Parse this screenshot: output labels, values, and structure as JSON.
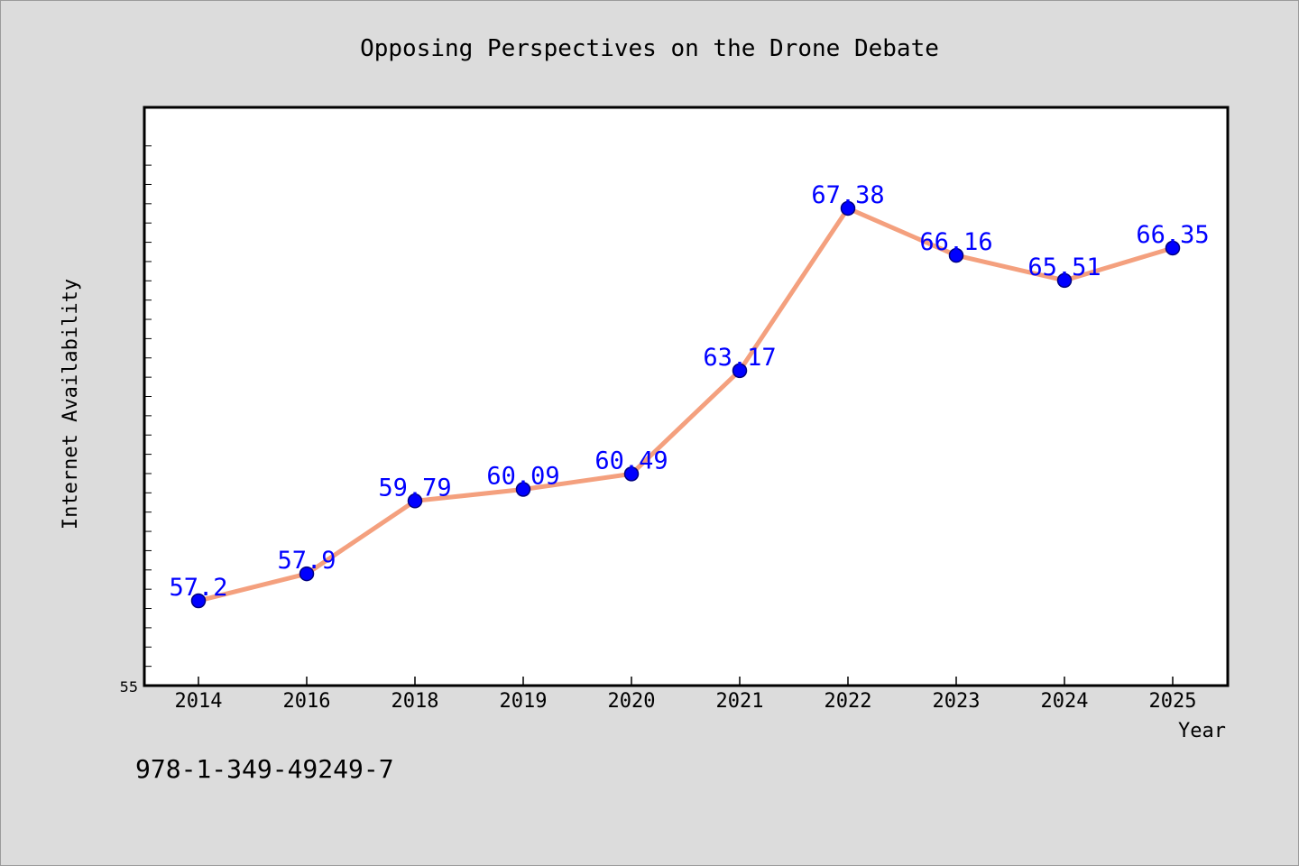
{
  "chart_data": {
    "type": "line",
    "title": "Opposing Perspectives on the Drone Debate",
    "xlabel": "Year",
    "ylabel": "Internet Availability",
    "categories": [
      "2014",
      "2016",
      "2018",
      "2019",
      "2020",
      "2021",
      "2022",
      "2023",
      "2024",
      "2025"
    ],
    "series": [
      {
        "values": [
          57.2,
          57.9,
          59.79,
          60.09,
          60.49,
          63.17,
          67.38,
          66.16,
          65.51,
          66.35
        ],
        "data_labels": [
          "57.2",
          "57.9",
          "59.79",
          "60.09",
          "60.49",
          "63.17",
          "67.38",
          "66.16",
          "65.51",
          "66.35"
        ]
      }
    ],
    "ylim": [
      55,
      70
    ],
    "ytick_label": "55",
    "grid": false,
    "legend": "none",
    "colors": {
      "line": "#f4a07e",
      "marker": "#0000ff",
      "marker_edge": "#000080",
      "data_label": "#0000ff",
      "plot_background": "#ffffff",
      "figure_background": "#dcdcdc"
    }
  },
  "annotation": {
    "isbn": "978-1-349-49249-7"
  }
}
